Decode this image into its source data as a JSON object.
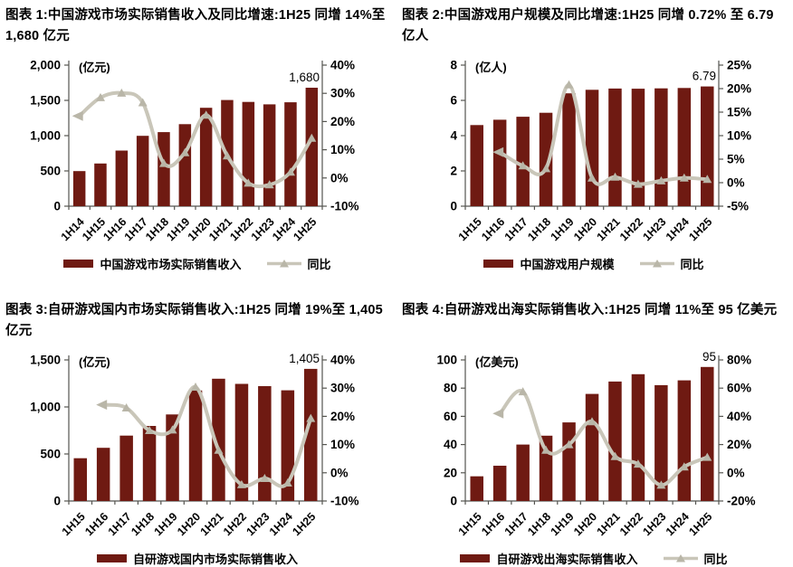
{
  "colors": {
    "background": "#ffffff",
    "bar": "#6f1a12",
    "line": "#c9c6b9",
    "marker": "#b9b6a8",
    "axis": "#555550",
    "text": "#000000"
  },
  "chart_data": [
    {
      "type": "bar+line",
      "title": "图表 1:中国游戏市场实际销售收入及同比增速:1H25 同增 14%至 1,680 亿元",
      "unit_label": "(亿元)",
      "categories": [
        "1H14",
        "1H15",
        "1H16",
        "1H17",
        "1H18",
        "1H19",
        "1H20",
        "1H21",
        "1H22",
        "1H23",
        "1H24",
        "1H25"
      ],
      "series": [
        {
          "name": "中国游戏市场实际销售收入",
          "type": "bar",
          "axis": "left",
          "values": [
            497,
            605,
            788,
            998,
            1050,
            1163,
            1395,
            1505,
            1478,
            1443,
            1473,
            1680
          ]
        },
        {
          "name": "同比",
          "type": "line",
          "axis": "right",
          "values": [
            22.0,
            28.5,
            30.1,
            26.7,
            5.2,
            9.0,
            22.3,
            7.9,
            -1.8,
            -2.4,
            2.1,
            14.1
          ]
        }
      ],
      "last_value_label": "1,680",
      "left_axis": {
        "min": 0,
        "max": 2000,
        "tick_values": [
          0,
          500,
          1000,
          1500,
          2000
        ],
        "tick_labels": [
          "0",
          "500",
          "1,000",
          "1,500",
          "2,000"
        ]
      },
      "right_axis": {
        "min": -10,
        "max": 40,
        "tick_values": [
          -10,
          0,
          10,
          20,
          30,
          40
        ],
        "tick_labels": [
          "-10%",
          "0%",
          "10%",
          "20%",
          "30%",
          "40%"
        ]
      }
    },
    {
      "type": "bar+line",
      "title": "图表 2:中国游戏用户规模及同比增速:1H25 同增 0.72% 至 6.79 亿人",
      "unit_label": "(亿人)",
      "categories": [
        "1H15",
        "1H16",
        "1H17",
        "1H18",
        "1H19",
        "1H20",
        "1H21",
        "1H22",
        "1H23",
        "1H24",
        "1H25"
      ],
      "series": [
        {
          "name": "中国游戏用户规模",
          "type": "bar",
          "axis": "left",
          "values": [
            4.6,
            4.9,
            5.07,
            5.3,
            6.4,
            6.6,
            6.67,
            6.66,
            6.68,
            6.7,
            6.79
          ]
        },
        {
          "name": "同比",
          "type": "line",
          "axis": "right",
          "values": [
            null,
            6.5,
            3.6,
            3.0,
            20.8,
            1.0,
            1.2,
            -0.3,
            0.4,
            1.0,
            0.72
          ]
        }
      ],
      "last_value_label": "6.79",
      "left_axis": {
        "min": 0,
        "max": 8,
        "tick_values": [
          0,
          2,
          4,
          6,
          8
        ],
        "tick_labels": [
          "0",
          "2",
          "4",
          "6",
          "8"
        ]
      },
      "right_axis": {
        "min": -5,
        "max": 25,
        "tick_values": [
          -5,
          0,
          5,
          10,
          15,
          20,
          25
        ],
        "tick_labels": [
          "-5%",
          "0%",
          "5%",
          "10%",
          "15%",
          "20%",
          "25%"
        ]
      }
    },
    {
      "type": "bar+line",
      "title": "图表 3:自研游戏国内市场实际销售收入:1H25 同增 19%至 1,405 亿元",
      "unit_label": "(亿元)",
      "categories": [
        "1H15",
        "1H16",
        "1H17",
        "1H18",
        "1H19",
        "1H20",
        "1H21",
        "1H22",
        "1H23",
        "1H24",
        "1H25"
      ],
      "series": [
        {
          "name": "自研游戏国内市场实际销售收入",
          "type": "bar",
          "axis": "left",
          "values": [
            455,
            565,
            695,
            798,
            920,
            1175,
            1300,
            1245,
            1221,
            1177,
            1405
          ]
        },
        {
          "name": "同比",
          "type": "line",
          "axis": "right",
          "values": [
            null,
            24.1,
            23.0,
            15.0,
            15.2,
            30.4,
            8.0,
            -4.2,
            -2.0,
            -3.6,
            19.3
          ]
        }
      ],
      "last_value_label": "1,405",
      "left_axis": {
        "min": 0,
        "max": 1500,
        "tick_values": [
          0,
          500,
          1000,
          1500
        ],
        "tick_labels": [
          "0",
          "500",
          "1,000",
          "1,500"
        ]
      },
      "right_axis": {
        "min": -10,
        "max": 40,
        "tick_values": [
          -10,
          0,
          10,
          20,
          30,
          40
        ],
        "tick_labels": [
          "-10%",
          "0%",
          "10%",
          "20%",
          "30%",
          "40%"
        ]
      }
    },
    {
      "type": "bar+line",
      "title": "图表 4:自研游戏出海实际销售收入:1H25 同增 11%至 95 亿美元",
      "unit_label": "(亿美元)",
      "categories": [
        "1H15",
        "1H16",
        "1H17",
        "1H18",
        "1H19",
        "1H20",
        "1H21",
        "1H22",
        "1H23",
        "1H24",
        "1H25"
      ],
      "series": [
        {
          "name": "自研游戏出海实际销售收入",
          "type": "bar",
          "axis": "left",
          "values": [
            17.5,
            25,
            40,
            46.3,
            55.7,
            75.9,
            84.7,
            89.9,
            82.1,
            85.5,
            95
          ]
        },
        {
          "name": "同比",
          "type": "line",
          "axis": "right",
          "values": [
            null,
            42,
            57.5,
            16,
            20,
            36.3,
            11.6,
            6.2,
            -8.7,
            4.2,
            11
          ]
        }
      ],
      "last_value_label": "95",
      "left_axis": {
        "min": 0,
        "max": 100,
        "tick_values": [
          0,
          20,
          40,
          60,
          80,
          100
        ],
        "tick_labels": [
          "0",
          "20",
          "40",
          "60",
          "80",
          "100"
        ]
      },
      "right_axis": {
        "min": -20,
        "max": 80,
        "tick_values": [
          -20,
          0,
          20,
          40,
          60,
          80
        ],
        "tick_labels": [
          "-20%",
          "0%",
          "20%",
          "40%",
          "60%",
          "80%"
        ]
      }
    }
  ]
}
